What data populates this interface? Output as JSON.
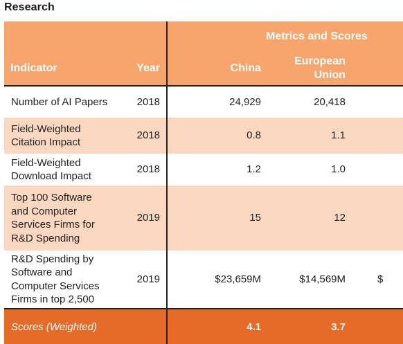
{
  "section_title": "Research",
  "header": {
    "group_label": "Metrics and Scores",
    "indicator": "Indicator",
    "year": "Year",
    "china": "China",
    "eu": "European\nUnion"
  },
  "rows": [
    {
      "indicator": "Number of AI Papers",
      "year": "2018",
      "china": "24,929",
      "eu": "20,418",
      "clip": ""
    },
    {
      "indicator": "Field-Weighted\nCitation Impact",
      "year": "2018",
      "china": "0.8",
      "eu": "1.1",
      "clip": ""
    },
    {
      "indicator": "Field-Weighted\nDownload Impact",
      "year": "2018",
      "china": "1.2",
      "eu": "1.0",
      "clip": ""
    },
    {
      "indicator": "Top 100 Software\nand Computer\nServices Firms for\nR&D Spending",
      "year": "2019",
      "china": "15",
      "eu": "12",
      "clip": ""
    },
    {
      "indicator": "R&D Spending by\nSoftware and\nComputer Services\nFirms in top 2,500",
      "year": "2019",
      "china": "$23,659M",
      "eu": "$14,569M",
      "clip": "$"
    }
  ],
  "scores": {
    "label": "Scores (Weighted)",
    "china": "4.1",
    "eu": "3.7"
  }
}
